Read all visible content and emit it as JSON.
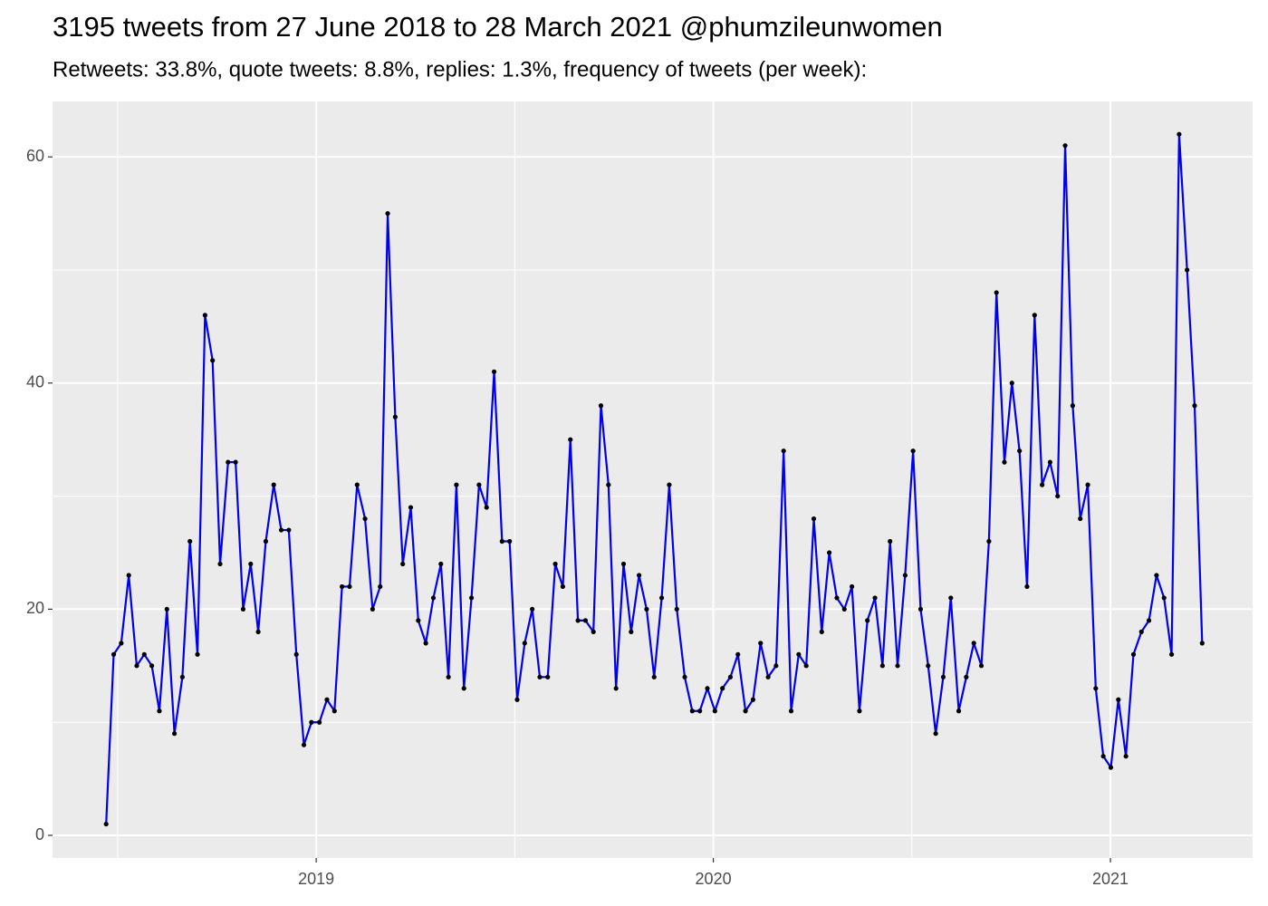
{
  "chart_data": {
    "type": "line",
    "title": "3195 tweets from 27 June 2018 to 28 March 2021 @phumzileunwomen",
    "subtitle": "Retweets: 33.8%, quote tweets: 8.8%, replies: 1.3%, frequency of tweets (per week):",
    "x": [
      2018.471,
      2018.49,
      2018.509,
      2018.528,
      2018.548,
      2018.567,
      2018.586,
      2018.605,
      2018.624,
      2018.643,
      2018.663,
      2018.682,
      2018.701,
      2018.72,
      2018.739,
      2018.758,
      2018.778,
      2018.797,
      2018.816,
      2018.835,
      2018.854,
      2018.873,
      2018.893,
      2018.912,
      2018.931,
      2018.95,
      2018.969,
      2018.988,
      2019.008,
      2019.027,
      2019.046,
      2019.065,
      2019.084,
      2019.103,
      2019.123,
      2019.142,
      2019.161,
      2019.18,
      2019.199,
      2019.218,
      2019.238,
      2019.257,
      2019.276,
      2019.295,
      2019.314,
      2019.333,
      2019.353,
      2019.372,
      2019.391,
      2019.41,
      2019.429,
      2019.448,
      2019.468,
      2019.487,
      2019.506,
      2019.525,
      2019.544,
      2019.563,
      2019.583,
      2019.602,
      2019.621,
      2019.64,
      2019.659,
      2019.678,
      2019.698,
      2019.717,
      2019.736,
      2019.755,
      2019.774,
      2019.793,
      2019.813,
      2019.832,
      2019.851,
      2019.87,
      2019.889,
      2019.908,
      2019.928,
      2019.947,
      2019.966,
      2019.985,
      2020.004,
      2020.023,
      2020.043,
      2020.062,
      2020.081,
      2020.1,
      2020.119,
      2020.138,
      2020.158,
      2020.177,
      2020.196,
      2020.215,
      2020.234,
      2020.253,
      2020.273,
      2020.292,
      2020.311,
      2020.33,
      2020.349,
      2020.368,
      2020.388,
      2020.407,
      2020.426,
      2020.445,
      2020.464,
      2020.483,
      2020.503,
      2020.522,
      2020.541,
      2020.56,
      2020.579,
      2020.598,
      2020.618,
      2020.637,
      2020.656,
      2020.675,
      2020.694,
      2020.713,
      2020.733,
      2020.752,
      2020.771,
      2020.79,
      2020.809,
      2020.828,
      2020.848,
      2020.867,
      2020.886,
      2020.905,
      2020.924,
      2020.943,
      2020.963,
      2020.982,
      2021.001,
      2021.02,
      2021.039,
      2021.058,
      2021.078,
      2021.097,
      2021.116,
      2021.135,
      2021.154,
      2021.173,
      2021.193,
      2021.212,
      2021.231
    ],
    "values": [
      1,
      16,
      17,
      23,
      15,
      16,
      15,
      11,
      20,
      9,
      14,
      26,
      16,
      46,
      42,
      24,
      33,
      33,
      20,
      24,
      18,
      26,
      31,
      27,
      27,
      16,
      8,
      10,
      10,
      12,
      11,
      22,
      22,
      31,
      28,
      20,
      22,
      55,
      37,
      24,
      29,
      19,
      17,
      21,
      24,
      14,
      31,
      13,
      21,
      31,
      29,
      41,
      26,
      26,
      12,
      17,
      20,
      14,
      14,
      24,
      22,
      35,
      19,
      19,
      18,
      38,
      31,
      13,
      24,
      18,
      23,
      20,
      14,
      21,
      31,
      20,
      14,
      11,
      11,
      13,
      11,
      13,
      14,
      16,
      11,
      12,
      17,
      14,
      15,
      34,
      11,
      16,
      15,
      28,
      18,
      25,
      21,
      20,
      22,
      11,
      19,
      21,
      15,
      26,
      15,
      23,
      34,
      20,
      15,
      9,
      14,
      21,
      11,
      14,
      17,
      15,
      26,
      48,
      33,
      40,
      34,
      22,
      46,
      31,
      33,
      30,
      61,
      38,
      28,
      31,
      13,
      7,
      6,
      12,
      7,
      16,
      18,
      19,
      23,
      21,
      16,
      62,
      50,
      38,
      17
    ],
    "color": "#0000ee",
    "point_color": "#000000",
    "xlim": [
      2018.336,
      2021.358
    ],
    "xticks": [
      2019,
      2020,
      2021
    ],
    "ylim": [
      -2.0,
      64.9
    ],
    "yticks": [
      0,
      20,
      40,
      60
    ],
    "grid": true
  }
}
